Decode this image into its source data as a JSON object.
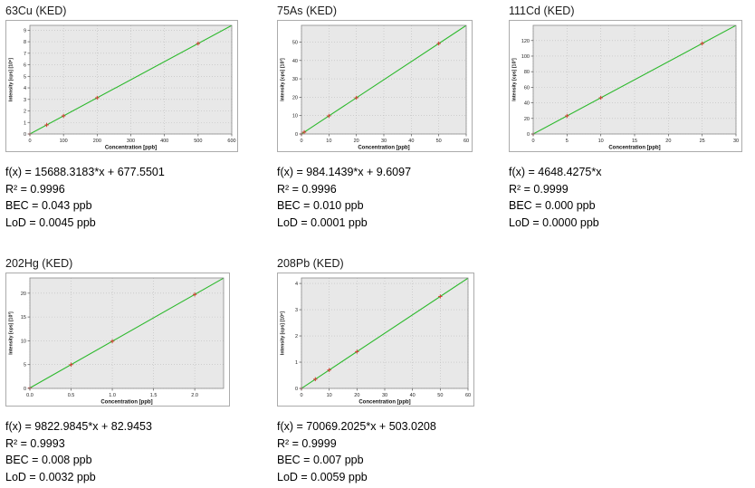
{
  "style": {
    "plot_bg": "#e8e8e8",
    "grid_color": "#bdbdbd",
    "axis_color": "#8a8a8a",
    "tick_color": "#555555",
    "line_color": "#2db92d",
    "marker_color": "#d23b2f",
    "label_color": "#222222"
  },
  "chart_data": [
    {
      "type": "line",
      "title": "63Cu (KED)",
      "xlabel": "Concentration [ppb]",
      "ylabel": "Intensity [cps] [10⁶]",
      "xlim": [
        0,
        600
      ],
      "ylim": [
        0,
        9.42
      ],
      "xticks": [
        0,
        100,
        200,
        300,
        400,
        500,
        600
      ],
      "xtick_labels": [
        "0",
        "100",
        "200",
        "300",
        "400",
        "500",
        "600"
      ],
      "yticks": [
        0,
        1,
        2,
        3,
        4,
        5,
        6,
        7,
        8,
        9
      ],
      "fit": {
        "slope": 15688.3183,
        "intercept": 677.5501,
        "scale": 1000000
      },
      "points": [
        [
          0,
          0.0007
        ],
        [
          50,
          0.785
        ],
        [
          100,
          1.569
        ],
        [
          200,
          3.138
        ],
        [
          500,
          7.845
        ]
      ],
      "stats": [
        "f(x) = 15688.3183*x + 677.5501",
        "R² = 0.9996",
        "BEC = 0.043 ppb",
        "LoD = 0.0045 ppb"
      ]
    },
    {
      "type": "line",
      "title": "75As (KED)",
      "xlabel": "Concentration [ppb]",
      "ylabel": "Intensity [cps] [10³]",
      "xlim": [
        0,
        60
      ],
      "ylim": [
        0,
        59.1
      ],
      "xticks": [
        0,
        10,
        20,
        30,
        40,
        50,
        60
      ],
      "xtick_labels": [
        "0",
        "10",
        "20",
        "30",
        "40",
        "50",
        "60"
      ],
      "yticks": [
        0,
        10,
        20,
        30,
        40,
        50
      ],
      "fit": {
        "slope": 984.1439,
        "intercept": 9.6097,
        "scale": 1000
      },
      "points": [
        [
          0,
          0.01
        ],
        [
          1,
          0.99
        ],
        [
          10,
          9.85
        ],
        [
          20,
          19.69
        ],
        [
          50,
          49.22
        ]
      ],
      "stats": [
        "f(x) = 984.1439*x + 9.6097",
        "R² = 0.9996",
        "BEC = 0.010 ppb",
        "LoD = 0.0001 ppb"
      ]
    },
    {
      "type": "line",
      "title": "111Cd (KED)",
      "xlabel": "Concentration [ppb]",
      "ylabel": "Intensity [cps] [10³]",
      "xlim": [
        0,
        30
      ],
      "ylim": [
        0,
        139.5
      ],
      "xticks": [
        0,
        5,
        10,
        15,
        20,
        25,
        30
      ],
      "xtick_labels": [
        "0",
        "5",
        "10",
        "15",
        "20",
        "25",
        "30"
      ],
      "yticks": [
        0,
        20,
        40,
        60,
        80,
        100,
        120
      ],
      "fit": {
        "slope": 4648.4275,
        "intercept": 0,
        "scale": 1000
      },
      "points": [
        [
          0,
          0
        ],
        [
          5,
          23.24
        ],
        [
          10,
          46.48
        ],
        [
          25,
          116.21
        ]
      ],
      "stats": [
        "f(x) = 4648.4275*x",
        "R² = 0.9999",
        "BEC = 0.000 ppb",
        "LoD = 0.0000 ppb"
      ]
    },
    {
      "type": "line",
      "title": "202Hg (KED)",
      "xlabel": "Concentration [ppb]",
      "ylabel": "Intensity [cps] [10³]",
      "xlim": [
        0,
        2.35
      ],
      "ylim": [
        0,
        23.2
      ],
      "xticks": [
        0,
        0.5,
        1.0,
        1.5,
        2.0
      ],
      "xtick_labels": [
        "0.0",
        "0.5",
        "1.0",
        "1.5",
        "2.0"
      ],
      "yticks": [
        0,
        5,
        10,
        15,
        20
      ],
      "fit": {
        "slope": 9822.9845,
        "intercept": 82.9453,
        "scale": 1000
      },
      "points": [
        [
          0,
          0.083
        ],
        [
          0.5,
          4.99
        ],
        [
          1.0,
          9.91
        ],
        [
          2.0,
          19.73
        ]
      ],
      "stats": [
        "f(x) = 9822.9845*x + 82.9453",
        "R² = 0.9993",
        "BEC = 0.008 ppb",
        "LoD = 0.0032 ppb"
      ]
    },
    {
      "type": "line",
      "title": "208Pb (KED)",
      "xlabel": "Concentration [ppb]",
      "ylabel": "Intensity [cps] [10⁶]",
      "xlim": [
        0,
        60
      ],
      "ylim": [
        0,
        4.21
      ],
      "xticks": [
        0,
        10,
        20,
        30,
        40,
        50,
        60
      ],
      "xtick_labels": [
        "0",
        "10",
        "20",
        "30",
        "40",
        "50",
        "60"
      ],
      "yticks": [
        0,
        1,
        2,
        3,
        4
      ],
      "fit": {
        "slope": 70069.2025,
        "intercept": 503.0208,
        "scale": 1000000
      },
      "points": [
        [
          0,
          0.0005
        ],
        [
          5,
          0.3508
        ],
        [
          10,
          0.7012
        ],
        [
          20,
          1.4019
        ],
        [
          50,
          3.5038
        ]
      ],
      "stats": [
        "f(x) = 70069.2025*x + 503.0208",
        "R² = 0.9999",
        "BEC = 0.007 ppb",
        "LoD = 0.0059 ppb"
      ]
    }
  ]
}
